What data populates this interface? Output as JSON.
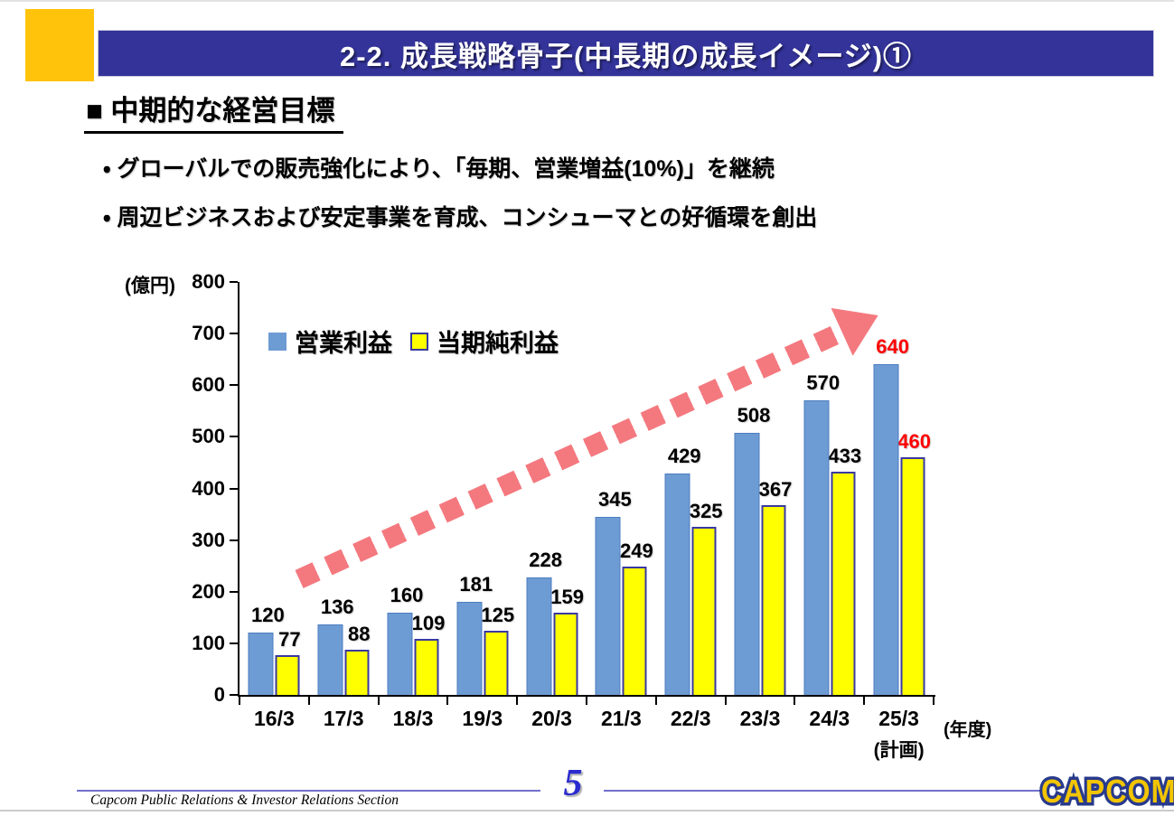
{
  "colors": {
    "navy": "#333399",
    "accent-yellow": "#FFC30B",
    "bar-blue-border": "#4D7EC0",
    "bar-yellow-border": "#3939A0",
    "arrow-pink": "#F4797F",
    "highlight-red": "#FF0000",
    "footer-line": "#7070CC",
    "page-blue": "#2B2BD0",
    "logo-yellow": "#F2C500",
    "logo-navy": "#283A8C"
  },
  "header": {
    "title": "2-2.  成長戦略骨子(中長期の成長イメージ)①"
  },
  "body": {
    "heading": "■ 中期的な経営目標",
    "bullets": [
      "・ グローバルでの販売強化により、「毎期、営業増益(10%)」を継続",
      "・ 周辺ビジネスおよび安定事業を育成、コンシューマとの好循環を創出"
    ]
  },
  "chart_data": {
    "type": "bar",
    "unit_label": "(億円)",
    "x_axis_label": "(年度)",
    "categories": [
      "16/3",
      "17/3",
      "18/3",
      "19/3",
      "20/3",
      "21/3",
      "22/3",
      "23/3",
      "24/3",
      "25/3"
    ],
    "last_category_note": "(計画)",
    "series": [
      {
        "name": "営業利益",
        "color": "#6D9BD3",
        "values": [
          120,
          136,
          160,
          181,
          228,
          345,
          429,
          508,
          570,
          640
        ]
      },
      {
        "name": "当期純利益",
        "color": "#FFFF00",
        "values": [
          77,
          88,
          109,
          125,
          159,
          249,
          325,
          367,
          433,
          460
        ]
      }
    ],
    "ylim": [
      0,
      800
    ],
    "ytick_step": 100,
    "grid": false,
    "legend_position": "top-left-inside",
    "value_labels": true,
    "highlight_last_color": "#FF0000",
    "trend_arrow": "dashed up-right"
  },
  "footer": {
    "section_text": "Capcom Public Relations & Investor Relations Section",
    "page_number": "5",
    "logo_text": "CAPCOM"
  }
}
